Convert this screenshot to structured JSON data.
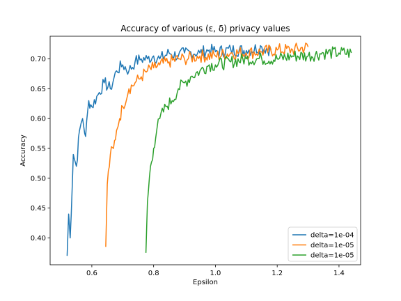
{
  "chart_data": {
    "type": "line",
    "title": "Accuracy of various (ε, δ) privacy values",
    "xlabel": "Epsilon",
    "ylabel": "Accuracy",
    "xlim": [
      0.465,
      1.47
    ],
    "ylim": [
      0.355,
      0.738
    ],
    "xticks": [
      0.6,
      0.8,
      1.0,
      1.2,
      1.4
    ],
    "xtick_labels": [
      "0.6",
      "0.8",
      "1.0",
      "1.2",
      "1.4"
    ],
    "yticks": [
      0.4,
      0.45,
      0.5,
      0.55,
      0.6,
      0.65,
      0.7
    ],
    "ytick_labels": [
      "0.40",
      "0.45",
      "0.50",
      "0.55",
      "0.60",
      "0.65",
      "0.70"
    ],
    "grid": false,
    "legend_position": "lower-right",
    "series": [
      {
        "name": "delta=1e-04",
        "color": "#1f77b4",
        "x": [
          0.52,
          0.525,
          0.53,
          0.54,
          0.55,
          0.56,
          0.57,
          0.58,
          0.59,
          0.6,
          0.62,
          0.64,
          0.66,
          0.68,
          0.7,
          0.72,
          0.74,
          0.76,
          0.78,
          0.8,
          0.82,
          0.85,
          0.88,
          0.9,
          0.92,
          0.95,
          0.98,
          1.0,
          1.05,
          1.1,
          1.15,
          1.18
        ],
        "y": [
          0.37,
          0.44,
          0.4,
          0.54,
          0.52,
          0.58,
          0.6,
          0.57,
          0.63,
          0.62,
          0.64,
          0.66,
          0.65,
          0.68,
          0.69,
          0.68,
          0.695,
          0.7,
          0.7,
          0.705,
          0.7,
          0.71,
          0.705,
          0.71,
          0.712,
          0.71,
          0.715,
          0.712,
          0.715,
          0.714,
          0.72,
          0.715
        ]
      },
      {
        "name": "delta=1e-05",
        "color": "#ff7f0e",
        "x": [
          0.645,
          0.65,
          0.66,
          0.67,
          0.68,
          0.69,
          0.7,
          0.72,
          0.74,
          0.76,
          0.78,
          0.8,
          0.82,
          0.85,
          0.88,
          0.9,
          0.95,
          1.0,
          1.05,
          1.1,
          1.15,
          1.2,
          1.25,
          1.3
        ],
        "y": [
          0.385,
          0.49,
          0.54,
          0.55,
          0.58,
          0.6,
          0.62,
          0.65,
          0.66,
          0.67,
          0.68,
          0.685,
          0.69,
          0.695,
          0.7,
          0.7,
          0.705,
          0.705,
          0.71,
          0.71,
          0.712,
          0.715,
          0.715,
          0.72
        ]
      },
      {
        "name": "delta=1e-05",
        "color": "#2ca02c",
        "x": [
          0.775,
          0.78,
          0.79,
          0.8,
          0.81,
          0.82,
          0.84,
          0.86,
          0.88,
          0.9,
          0.92,
          0.95,
          0.98,
          1.0,
          1.05,
          1.1,
          1.15,
          1.2,
          1.25,
          1.3,
          1.35,
          1.4,
          1.44
        ],
        "y": [
          0.375,
          0.46,
          0.52,
          0.55,
          0.58,
          0.6,
          0.62,
          0.63,
          0.65,
          0.66,
          0.67,
          0.68,
          0.69,
          0.69,
          0.695,
          0.7,
          0.7,
          0.7,
          0.705,
          0.705,
          0.71,
          0.71,
          0.71
        ]
      }
    ]
  }
}
